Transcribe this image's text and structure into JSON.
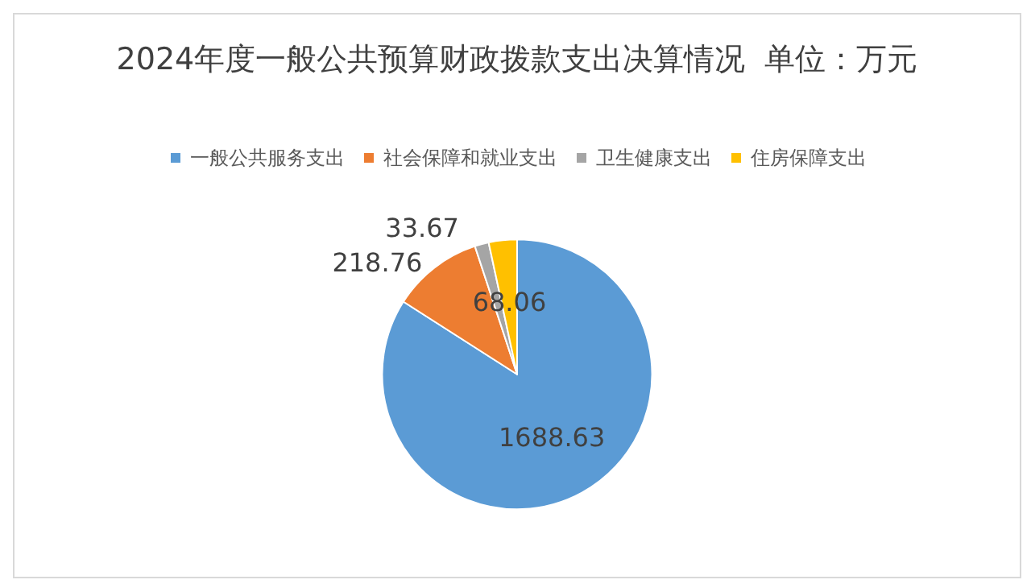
{
  "chart_data": {
    "type": "pie",
    "title": "2024年度一般公共预算财政拨款支出决算情况  单位：万元",
    "categories": [
      "一般公共服务支出",
      "社会保障和就业支出",
      "卫生健康支出",
      "住房保障支出"
    ],
    "values": [
      1688.63,
      218.76,
      33.67,
      68.06
    ],
    "colors": [
      "#5b9bd5",
      "#ed7d31",
      "#a5a5a5",
      "#ffc000"
    ],
    "data_labels": true,
    "legend": "top"
  }
}
